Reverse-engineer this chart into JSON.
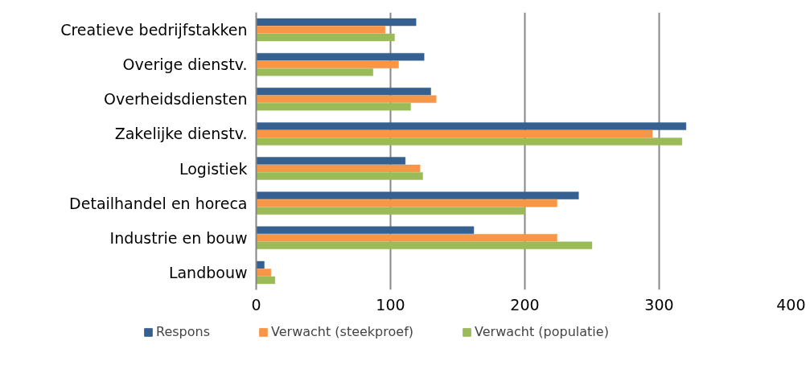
{
  "chart_data": {
    "type": "bar",
    "orientation": "horizontal",
    "categories": [
      "Creatieve bedrijfstakken",
      "Overige dienstv.",
      "Overheidsdiensten",
      "Zakelijke dienstv.",
      "Logistiek",
      "Detailhandel en horeca",
      "Industrie en bouw",
      "Landbouw"
    ],
    "series": [
      {
        "name": "Respons",
        "color": "#35608f",
        "values": [
          119,
          125,
          130,
          320,
          111,
          240,
          162,
          6
        ]
      },
      {
        "name": "Verwacht (steekproef)",
        "color": "#f79646",
        "values": [
          96,
          106,
          134,
          295,
          122,
          224,
          224,
          11
        ]
      },
      {
        "name": "Verwacht (populatie)",
        "color": "#9bbb59",
        "values": [
          103,
          87,
          115,
          317,
          124,
          200,
          250,
          14
        ]
      }
    ],
    "xlim": [
      0,
      400
    ],
    "xticks": [
      0,
      100,
      200,
      300,
      400
    ],
    "grid": "x",
    "legend": "bottom"
  }
}
